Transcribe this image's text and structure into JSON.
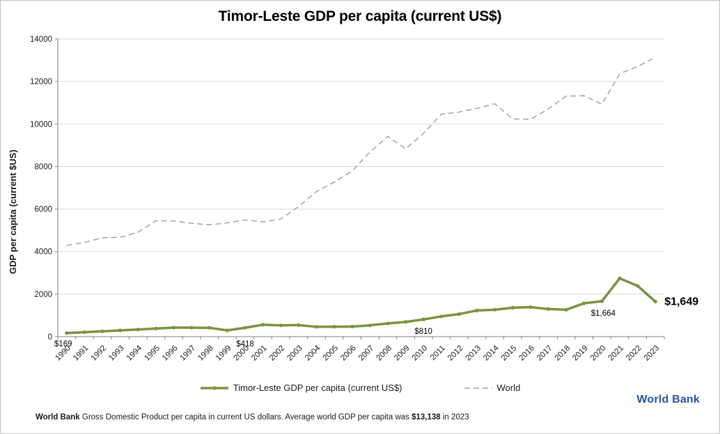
{
  "title": "Timor-Leste GDP per capita (current US$)",
  "colors": {
    "timor_line": "#78943c",
    "world_line": "#9e9e9e",
    "gridline": "#d9d9d9",
    "axis": "#808080",
    "text": "#1a1a1a",
    "worldbank_blue": "#28569b"
  },
  "chart_data": {
    "type": "line",
    "title": "Timor-Leste GDP per capita (current US$)",
    "xlabel": "",
    "ylabel": "GDP per capita  (current $US)",
    "ylim": [
      0,
      14000
    ],
    "yticks": [
      0,
      2000,
      4000,
      6000,
      8000,
      10000,
      12000,
      14000
    ],
    "grid": true,
    "legend_position": "bottom",
    "x": [
      1990,
      1991,
      1992,
      1993,
      1994,
      1995,
      1996,
      1997,
      1998,
      1999,
      2000,
      2001,
      2002,
      2003,
      2004,
      2005,
      2006,
      2007,
      2008,
      2009,
      2010,
      2011,
      2012,
      2013,
      2014,
      2015,
      2016,
      2017,
      2018,
      2019,
      2020,
      2021,
      2022,
      2023
    ],
    "series": [
      {
        "name": "Timor-Leste GDP per capita (current US$)",
        "style": "solid",
        "markers": true,
        "values": [
          169,
          210,
          250,
          295,
          335,
          380,
          425,
          420,
          415,
          295,
          418,
          560,
          530,
          545,
          460,
          465,
          475,
          530,
          620,
          690,
          810,
          950,
          1060,
          1230,
          1265,
          1360,
          1385,
          1300,
          1265,
          1570,
          1664,
          2741,
          2389,
          1649
        ]
      },
      {
        "name": "World",
        "style": "dashed",
        "markers": false,
        "values": [
          4290,
          4430,
          4650,
          4670,
          4910,
          5450,
          5440,
          5330,
          5260,
          5350,
          5490,
          5400,
          5530,
          6120,
          6820,
          7270,
          7790,
          8680,
          9420,
          8830,
          9560,
          10460,
          10560,
          10740,
          10950,
          10240,
          10220,
          10710,
          11310,
          11330,
          10930,
          12370,
          12700,
          13138
        ]
      }
    ],
    "annotations": [
      {
        "year": 1990,
        "text": "$169",
        "placement": "below-axis",
        "dx": -5
      },
      {
        "year": 2000,
        "text": "$418",
        "placement": "below-axis",
        "dx": 0
      },
      {
        "year": 2010,
        "text": "$810",
        "placement": "above-axis",
        "dx": 0
      },
      {
        "year": 2020,
        "text": "$1,664",
        "placement": "below-point",
        "dx": 2
      },
      {
        "year": 2023,
        "text": "$1,649",
        "placement": "right-of-point",
        "bold": true
      }
    ]
  },
  "legend": {
    "items": [
      {
        "label": "Timor-Leste GDP per capita (current US$)",
        "sample": "solid-line-with-marker"
      },
      {
        "label": "World",
        "sample": "dashed-line"
      }
    ]
  },
  "branding": {
    "worldbank_label": "World Bank"
  },
  "footnote": {
    "segments": [
      {
        "text": "World Bank",
        "bold": true
      },
      {
        "text": "  Gross Domestic Product per capita in current US dollars.   ",
        "bold": false
      },
      {
        "text": "Average world GDP per capita was ",
        "bold": false
      },
      {
        "text": "$13,138",
        "bold": true
      },
      {
        "text": " in 2023",
        "bold": false
      }
    ]
  }
}
